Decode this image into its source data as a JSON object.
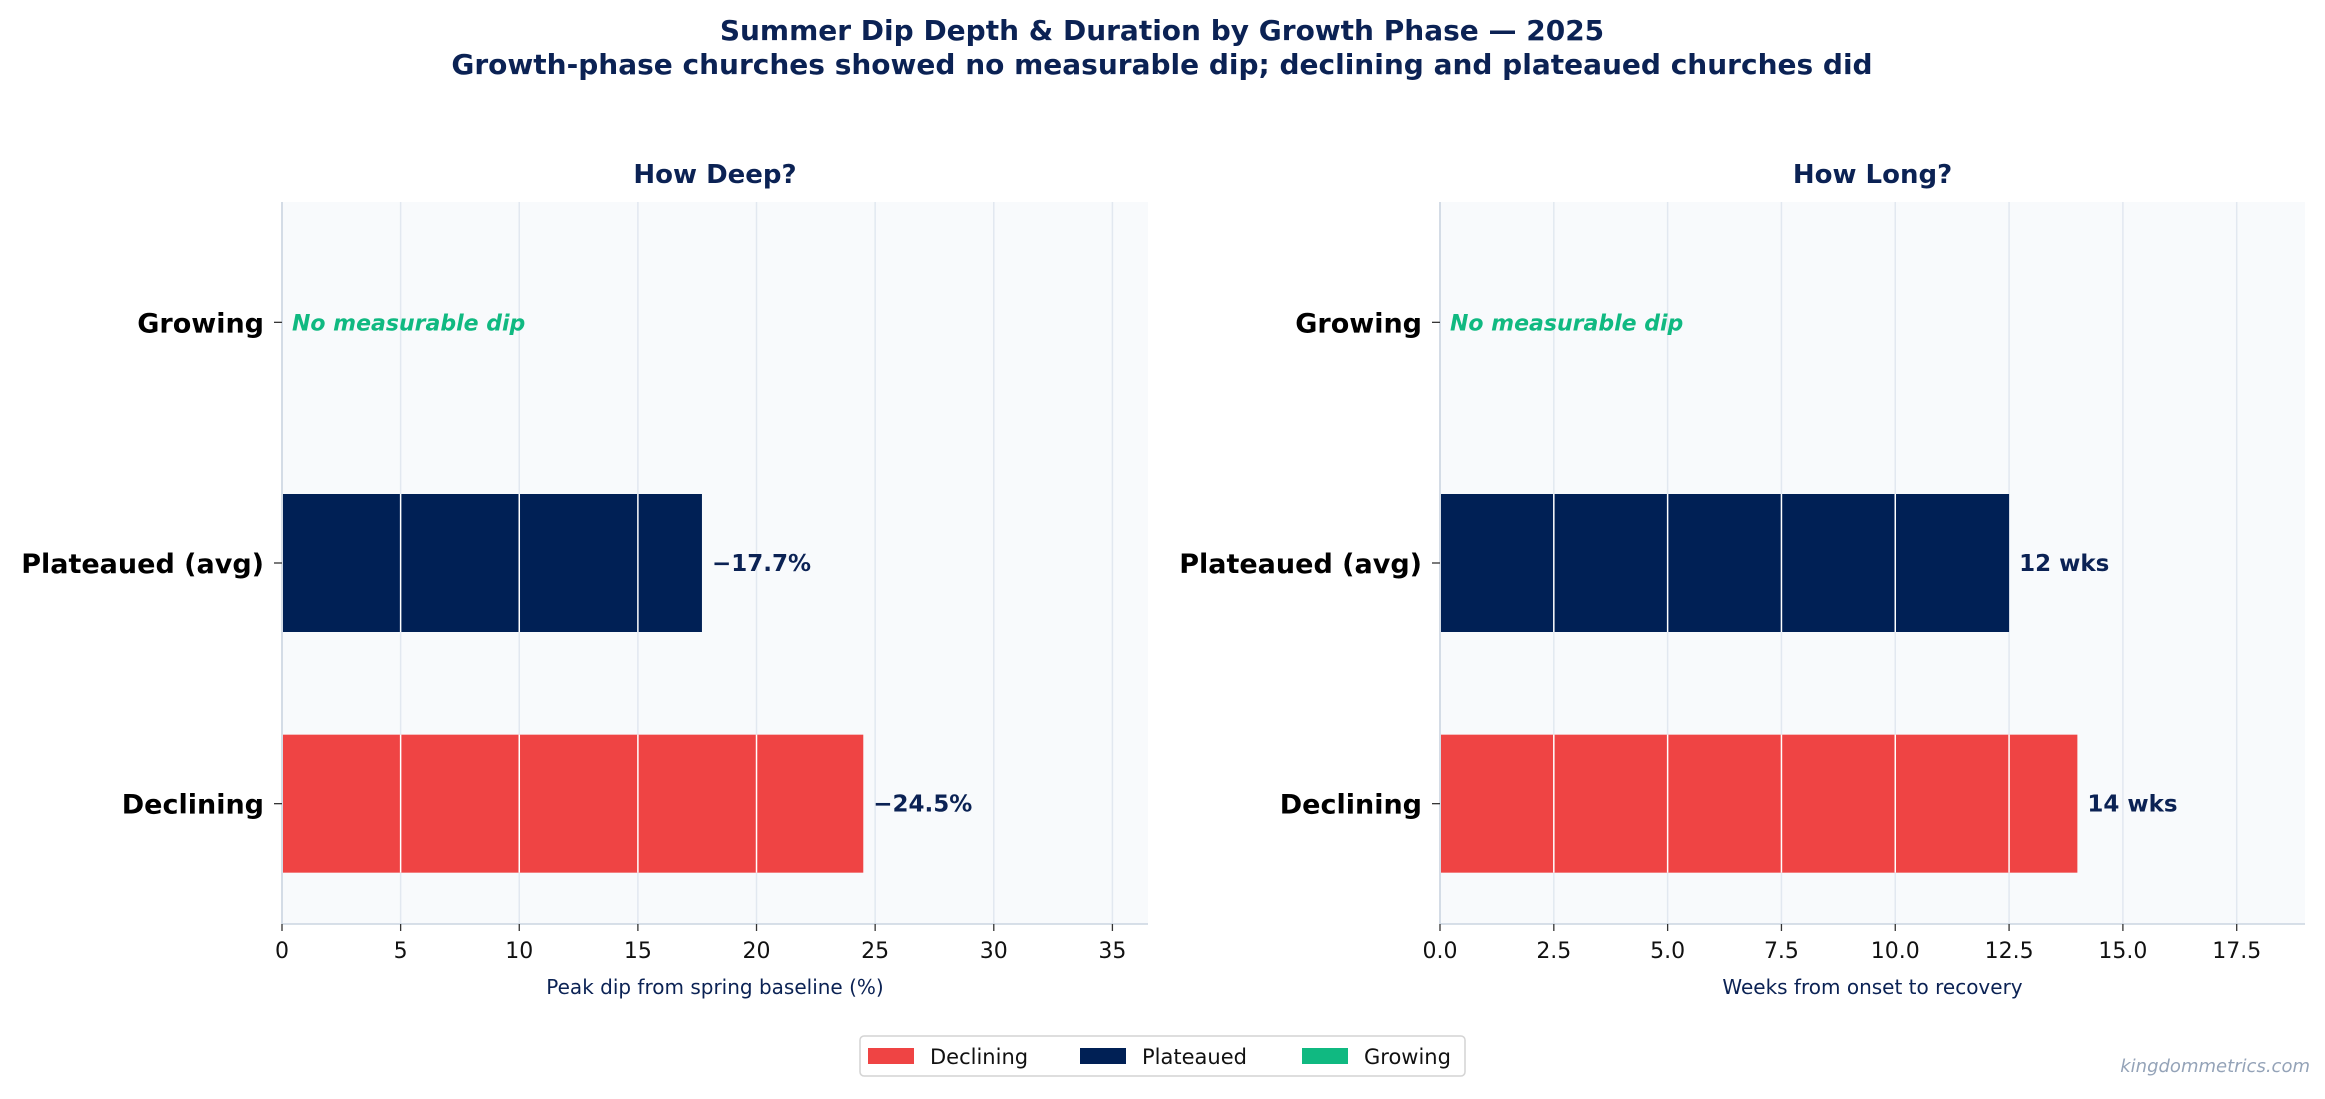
{
  "title_line1": "Summer Dip Depth & Duration by Growth Phase — 2025",
  "title_line2": "Growth-phase churches showed no measurable dip; declining and plateaued churches did",
  "watermark": "kingdommetrics.com",
  "colors": {
    "title": "#0b2254",
    "declining": "#ef4444",
    "plateaued": "#002055",
    "growing": "#10b981",
    "panel_bg": "#f8fafc",
    "grid": "#e2e8f0",
    "watermark": "#94a3b8"
  },
  "legend": {
    "items": [
      {
        "label": "Declining",
        "color": "#ef4444"
      },
      {
        "label": "Plateaued",
        "color": "#002055"
      },
      {
        "label": "Growing",
        "color": "#10b981"
      }
    ]
  },
  "chart_data": [
    {
      "type": "bar",
      "orientation": "horizontal",
      "title": "How Deep?",
      "xlabel": "Peak dip from spring baseline (%)",
      "categories": [
        "Growing",
        "Plateaued (avg)",
        "Declining"
      ],
      "values": [
        0,
        17.7,
        24.5
      ],
      "data_labels": [
        "No measurable dip",
        "−17.7%",
        "−24.5%"
      ],
      "bar_colors": [
        "#10b981",
        "#002055",
        "#ef4444"
      ],
      "xlim": [
        0,
        36.5
      ],
      "xticks": [
        0,
        5,
        10,
        15,
        20,
        25,
        30,
        35
      ],
      "xtick_labels": [
        "0",
        "5",
        "10",
        "15",
        "20",
        "25",
        "30",
        "35"
      ],
      "grid": true
    },
    {
      "type": "bar",
      "orientation": "horizontal",
      "title": "How Long?",
      "xlabel": "Weeks from onset to recovery",
      "categories": [
        "Growing",
        "Plateaued (avg)",
        "Declining"
      ],
      "values": [
        0,
        12.5,
        14
      ],
      "data_labels": [
        "No measurable dip",
        "12 wks",
        "14 wks"
      ],
      "bar_colors": [
        "#10b981",
        "#002055",
        "#ef4444"
      ],
      "xlim": [
        0,
        19
      ],
      "xticks": [
        0,
        2.5,
        5,
        7.5,
        10,
        12.5,
        15,
        17.5
      ],
      "xtick_labels": [
        "0.0",
        "2.5",
        "5.0",
        "7.5",
        "10.0",
        "12.5",
        "15.0",
        "17.5"
      ],
      "grid": true
    }
  ]
}
